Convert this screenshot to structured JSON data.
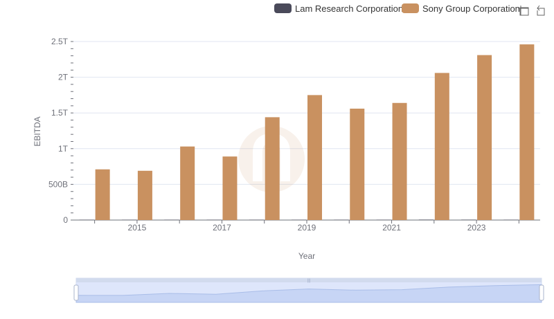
{
  "legend": {
    "items": [
      {
        "label": "Lam Research Corporation",
        "color": "#4a4a5a"
      },
      {
        "label": "Sony Group Corporation",
        "color": "#c99160"
      }
    ]
  },
  "toolbox": {
    "icons": [
      "zoom-icon",
      "restore-icon"
    ]
  },
  "chart_data": {
    "type": "bar",
    "x": [
      2014,
      2015,
      2016,
      2017,
      2018,
      2019,
      2020,
      2021,
      2022,
      2023,
      2024
    ],
    "xtick_labels": [
      "2015",
      "2017",
      "2019",
      "2021",
      "2023"
    ],
    "series": [
      {
        "name": "Lam Research Corporation",
        "color": "#4a4a5a",
        "values": [
          0.0004,
          0.0013,
          0.0014,
          0.0022,
          0.0037,
          0.0033,
          0.0031,
          0.0047,
          0.0058,
          0.0054,
          0.0043
        ]
      },
      {
        "name": "Sony Group Corporation",
        "color": "#c99160",
        "values": [
          0.71,
          0.69,
          1.03,
          0.89,
          1.44,
          1.75,
          1.56,
          1.64,
          2.06,
          2.31,
          2.46
        ]
      }
    ],
    "value_unit": "trillions",
    "ylabel": "EBITDA",
    "xlabel": "Year",
    "ytick_labels": [
      "0",
      "500B",
      "1T",
      "1.5T",
      "2T",
      "2.5T"
    ],
    "ylim": [
      0,
      2.5
    ],
    "grid": true,
    "legend_position": "top-right"
  },
  "datazoom": {
    "range": [
      0,
      100
    ],
    "series_values": [
      0.71,
      0.69,
      1.03,
      0.89,
      1.44,
      1.75,
      1.56,
      1.64,
      2.06,
      2.31,
      2.46
    ]
  }
}
